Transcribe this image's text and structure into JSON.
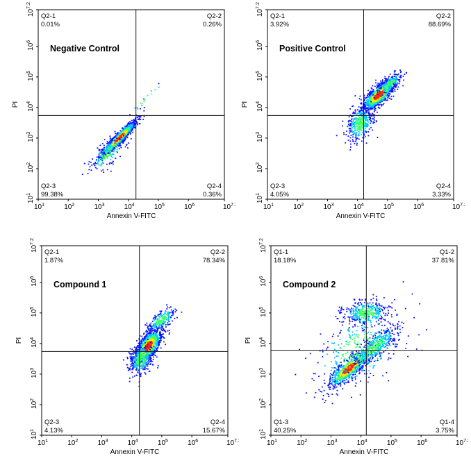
{
  "chart_data": [
    {
      "type": "scatter",
      "title": "Negative Control",
      "xlabel": "Annexin V-FITC",
      "ylabel": "PI",
      "x_scale": "log",
      "y_scale": "log",
      "xlim": [
        10,
        15848932
      ],
      "ylim": [
        10,
        15848932
      ],
      "x_ticks": [
        {
          "b": "10",
          "e": "1"
        },
        {
          "b": "10",
          "e": "2"
        },
        {
          "b": "10",
          "e": "3"
        },
        {
          "b": "10",
          "e": "4"
        },
        {
          "b": "10",
          "e": "5"
        },
        {
          "b": "10",
          "e": "6"
        },
        {
          "b": "10",
          "e": "7.2"
        }
      ],
      "y_ticks": [
        {
          "b": "10",
          "e": "1"
        },
        {
          "b": "10",
          "e": "2"
        },
        {
          "b": "10",
          "e": "3"
        },
        {
          "b": "10",
          "e": "4"
        },
        {
          "b": "10",
          "e": "5"
        },
        {
          "b": "10",
          "e": "6"
        },
        {
          "b": "10",
          "e": "7.2"
        }
      ],
      "gate": {
        "x": 18000,
        "y": 5500
      },
      "quadrants": [
        {
          "pos": "upper-left",
          "name": "Q2-1",
          "pct": "0.01%"
        },
        {
          "pos": "upper-right",
          "name": "Q2-2",
          "pct": "0.26%"
        },
        {
          "pos": "lower-left",
          "name": "Q2-3",
          "pct": "99.38%"
        },
        {
          "pos": "lower-right",
          "name": "Q2-4",
          "pct": "0.36%"
        }
      ],
      "populations": [
        {
          "x": 5000,
          "y": 1000,
          "n": 1300,
          "sd_major": 0.38,
          "sd_minor": 0.07,
          "angle_deg": 45,
          "core": true
        },
        {
          "x": 2000,
          "y": 300,
          "n": 160,
          "sd_major": 0.35,
          "sd_minor": 0.16,
          "angle_deg": 45,
          "core": false
        },
        {
          "x": 40000,
          "y": 20000,
          "n": 18,
          "sd_major": 0.5,
          "sd_minor": 0.06,
          "angle_deg": 45,
          "core": false
        }
      ]
    },
    {
      "type": "scatter",
      "title": "Positive Control",
      "xlabel": "Annexin V-FITC",
      "ylabel": "PI",
      "x_scale": "log",
      "y_scale": "log",
      "xlim": [
        10,
        15848932
      ],
      "ylim": [
        10,
        15848932
      ],
      "x_ticks": [
        {
          "b": "10",
          "e": "1"
        },
        {
          "b": "10",
          "e": "2"
        },
        {
          "b": "10",
          "e": "3"
        },
        {
          "b": "10",
          "e": "4"
        },
        {
          "b": "10",
          "e": "5"
        },
        {
          "b": "10",
          "e": "6"
        },
        {
          "b": "10",
          "e": "7.2"
        }
      ],
      "y_ticks": [
        {
          "b": "10",
          "e": "1"
        },
        {
          "b": "10",
          "e": "2"
        },
        {
          "b": "10",
          "e": "3"
        },
        {
          "b": "10",
          "e": "4"
        },
        {
          "b": "10",
          "e": "5"
        },
        {
          "b": "10",
          "e": "6"
        },
        {
          "b": "10",
          "e": "7.2"
        }
      ],
      "gate": {
        "x": 16000,
        "y": 5500
      },
      "quadrants": [
        {
          "pos": "upper-left",
          "name": "Q2-1",
          "pct": "3.92%"
        },
        {
          "pos": "upper-right",
          "name": "Q2-2",
          "pct": "88.69%"
        },
        {
          "pos": "lower-left",
          "name": "Q2-3",
          "pct": "4.05%"
        },
        {
          "pos": "lower-right",
          "name": "Q2-4",
          "pct": "3.33%"
        }
      ],
      "populations": [
        {
          "x": 50000,
          "y": 25000,
          "n": 1300,
          "sd_major": 0.32,
          "sd_minor": 0.12,
          "angle_deg": 42,
          "core": true
        },
        {
          "x": 12000,
          "y": 3000,
          "n": 380,
          "sd_major": 0.3,
          "sd_minor": 0.2,
          "angle_deg": 70,
          "core": false
        },
        {
          "x": 120000,
          "y": 60000,
          "n": 160,
          "sd_major": 0.25,
          "sd_minor": 0.1,
          "angle_deg": 40,
          "core": false
        }
      ]
    },
    {
      "type": "scatter",
      "title": "Compound 1",
      "xlabel": "Annexin V-FITC",
      "ylabel": "PI",
      "x_scale": "log",
      "y_scale": "log",
      "xlim": [
        10,
        15848932
      ],
      "ylim": [
        10,
        15848932
      ],
      "x_ticks": [
        {
          "b": "10",
          "e": "1"
        },
        {
          "b": "10",
          "e": "2"
        },
        {
          "b": "10",
          "e": "3"
        },
        {
          "b": "10",
          "e": "4"
        },
        {
          "b": "10",
          "e": "5"
        },
        {
          "b": "10",
          "e": "6"
        },
        {
          "b": "10",
          "e": "7.2"
        }
      ],
      "y_ticks": [
        {
          "b": "10",
          "e": "1"
        },
        {
          "b": "10",
          "e": "2"
        },
        {
          "b": "10",
          "e": "3"
        },
        {
          "b": "10",
          "e": "4"
        },
        {
          "b": "10",
          "e": "5"
        },
        {
          "b": "10",
          "e": "6"
        },
        {
          "b": "10",
          "e": "7.2"
        }
      ],
      "gate": {
        "x": 18000,
        "y": 5500
      },
      "quadrants": [
        {
          "pos": "upper-left",
          "name": "Q2-1",
          "pct": "1.87%"
        },
        {
          "pos": "upper-right",
          "name": "Q2-2",
          "pct": "78.34%"
        },
        {
          "pos": "lower-left",
          "name": "Q2-3",
          "pct": "4.13%"
        },
        {
          "pos": "lower-right",
          "name": "Q2-4",
          "pct": "15.67%"
        }
      ],
      "populations": [
        {
          "x": 35000,
          "y": 8000,
          "n": 1400,
          "sd_major": 0.33,
          "sd_minor": 0.14,
          "angle_deg": 55,
          "core": true
        },
        {
          "x": 20000,
          "y": 3000,
          "n": 320,
          "sd_major": 0.25,
          "sd_minor": 0.18,
          "angle_deg": 70,
          "core": false
        },
        {
          "x": 100000,
          "y": 60000,
          "n": 220,
          "sd_major": 0.3,
          "sd_minor": 0.12,
          "angle_deg": 40,
          "core": false
        }
      ]
    },
    {
      "type": "scatter",
      "title": "Compound 2",
      "xlabel": "Annexin V-FITC",
      "ylabel": "PI",
      "x_scale": "log",
      "y_scale": "log",
      "xlim": [
        10,
        15848932
      ],
      "ylim": [
        10,
        15848932
      ],
      "x_ticks": [
        {
          "b": "10",
          "e": "1"
        },
        {
          "b": "10",
          "e": "2"
        },
        {
          "b": "10",
          "e": "3"
        },
        {
          "b": "10",
          "e": "4"
        },
        {
          "b": "10",
          "e": "5"
        },
        {
          "b": "10",
          "e": "6"
        },
        {
          "b": "10",
          "e": "7.2"
        }
      ],
      "y_ticks": [
        {
          "b": "10",
          "e": "1"
        },
        {
          "b": "10",
          "e": "2"
        },
        {
          "b": "10",
          "e": "3"
        },
        {
          "b": "10",
          "e": "4"
        },
        {
          "b": "10",
          "e": "5"
        },
        {
          "b": "10",
          "e": "6"
        },
        {
          "b": "10",
          "e": "7.2"
        }
      ],
      "gate": {
        "x": 15000,
        "y": 6000
      },
      "quadrants": [
        {
          "pos": "upper-left",
          "name": "Q1-1",
          "pct": "18.18%"
        },
        {
          "pos": "upper-right",
          "name": "Q1-2",
          "pct": "37.81%"
        },
        {
          "pos": "lower-left",
          "name": "Q1-3",
          "pct": "40.25%"
        },
        {
          "pos": "lower-right",
          "name": "Q1-4",
          "pct": "3.75%"
        }
      ],
      "populations": [
        {
          "x": 4000,
          "y": 1500,
          "n": 750,
          "sd_major": 0.42,
          "sd_minor": 0.13,
          "angle_deg": 40,
          "core": true
        },
        {
          "x": 30000,
          "y": 8000,
          "n": 420,
          "sd_major": 0.45,
          "sd_minor": 0.16,
          "angle_deg": 40,
          "core": false
        },
        {
          "x": 15000,
          "y": 100000,
          "n": 400,
          "sd_major": 0.38,
          "sd_minor": 0.2,
          "angle_deg": 5,
          "core": false
        },
        {
          "x": 8000,
          "y": 6000,
          "n": 350,
          "sd_major": 0.9,
          "sd_minor": 0.55,
          "angle_deg": 35,
          "core": false
        }
      ]
    }
  ],
  "colors": {
    "density_low": "#0b13ff",
    "density_mid1": "#00c8ff",
    "density_mid2": "#39ff6a",
    "density_high1": "#ffe600",
    "density_high2": "#ff2b00",
    "axis": "#000000",
    "background": "#ffffff"
  }
}
